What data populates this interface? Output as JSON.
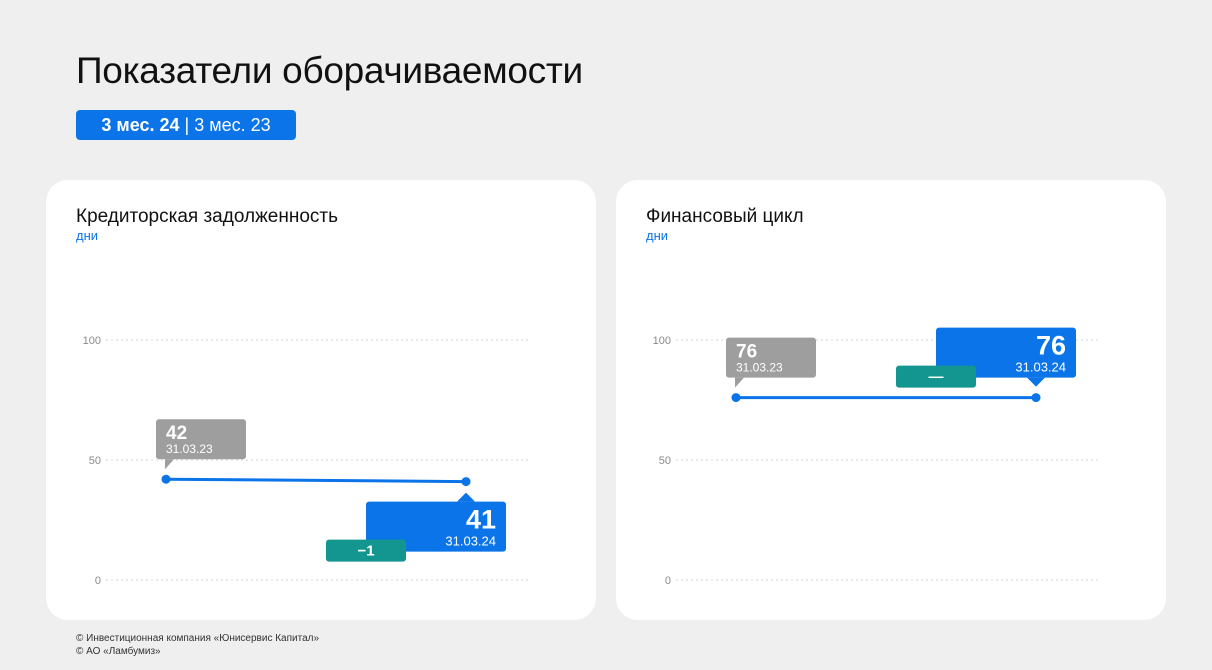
{
  "header": {
    "title": "Показатели оборачиваемости",
    "period_active": "3 мес. 24",
    "period_separator": "|",
    "period_other": "3 мес. 23"
  },
  "colors": {
    "accent": "#0a74e8",
    "prior": "#9e9e9e",
    "delta": "#13968f"
  },
  "chart_data": [
    {
      "type": "line",
      "title": "Кредиторская задолженность",
      "ylabel": "дни",
      "ylim": [
        0,
        100
      ],
      "y_ticks": [
        "0",
        "50",
        "100"
      ],
      "grid": true,
      "series": [
        {
          "points": [
            {
              "y": 42,
              "value_label": "42",
              "date_label": "31.03.23"
            },
            {
              "y": 41,
              "value_label": "41",
              "date_label": "31.03.24"
            }
          ]
        }
      ],
      "delta_label": "−1"
    },
    {
      "type": "line",
      "title": "Финансовый цикл",
      "ylabel": "дни",
      "ylim": [
        0,
        100
      ],
      "y_ticks": [
        "0",
        "50",
        "100"
      ],
      "grid": true,
      "series": [
        {
          "points": [
            {
              "y": 76,
              "value_label": "76",
              "date_label": "31.03.23"
            },
            {
              "y": 76,
              "value_label": "76",
              "date_label": "31.03.24"
            }
          ]
        }
      ],
      "delta_label": "—"
    }
  ],
  "footer": {
    "line1": "© Инвестиционная компания «Юнисервис Капитал»",
    "line2": "© АО «Ламбумиз»"
  }
}
